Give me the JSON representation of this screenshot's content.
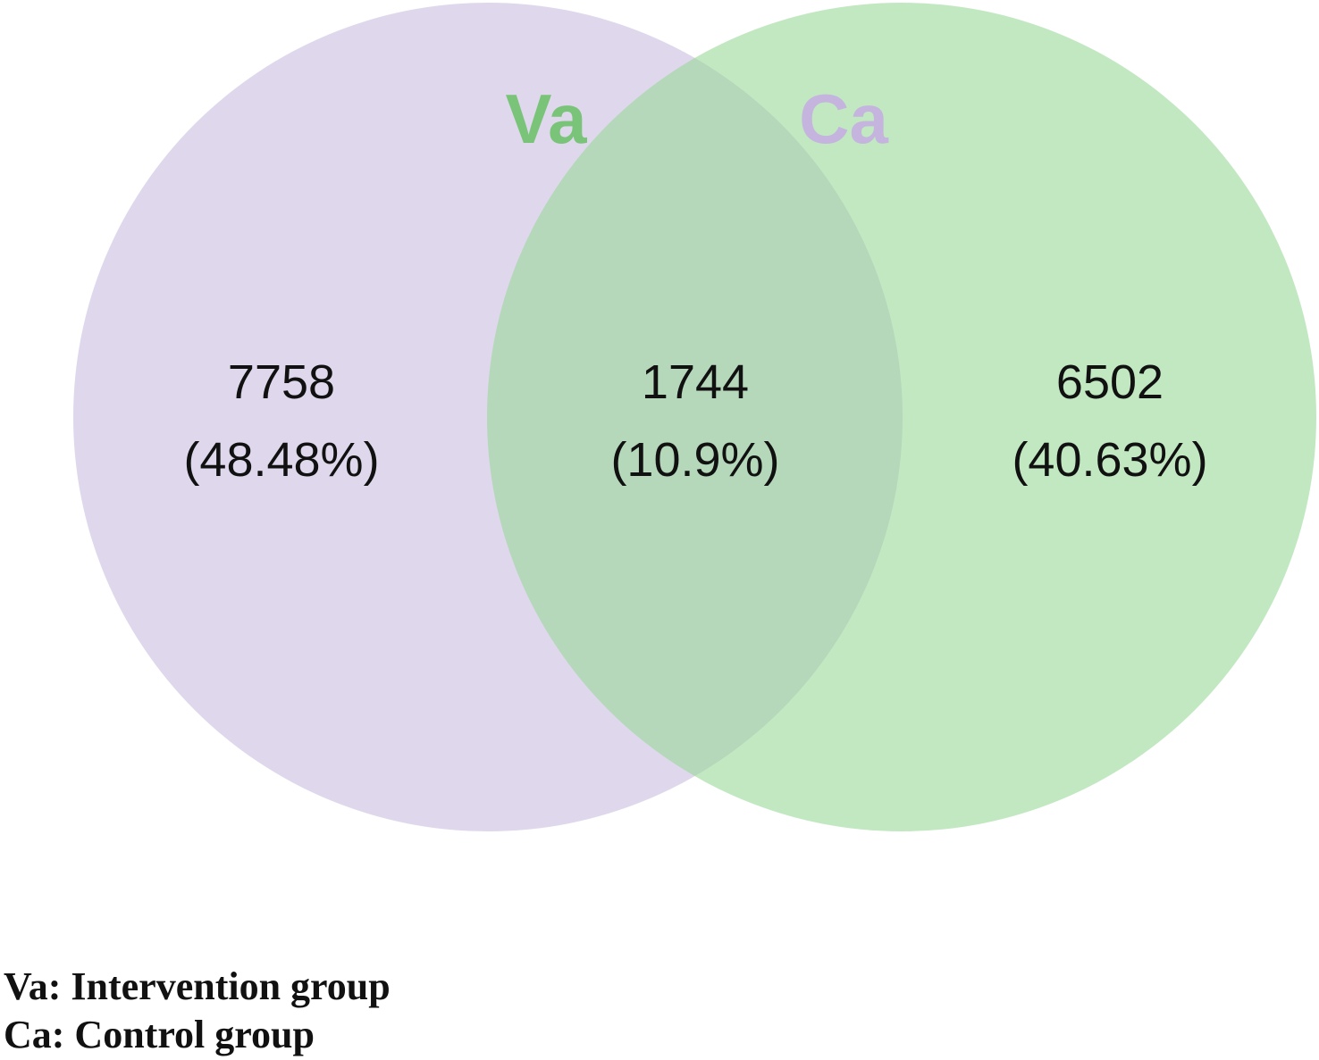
{
  "sets": [
    {
      "id": "va",
      "label": "Va",
      "fill": "#c9bde0",
      "label_color": "#7ac47a"
    },
    {
      "id": "ca",
      "label": "Ca",
      "fill": "#9ad89a",
      "label_color": "#c4b4de"
    }
  ],
  "regions": {
    "va_only": {
      "count": "7758",
      "percent": "(48.48%)"
    },
    "overlap": {
      "count": "1744",
      "percent": "(10.9%)"
    },
    "ca_only": {
      "count": "6502",
      "percent": "(40.63%)"
    }
  },
  "legend": [
    "Va: Intervention group",
    "Ca: Control group"
  ]
}
